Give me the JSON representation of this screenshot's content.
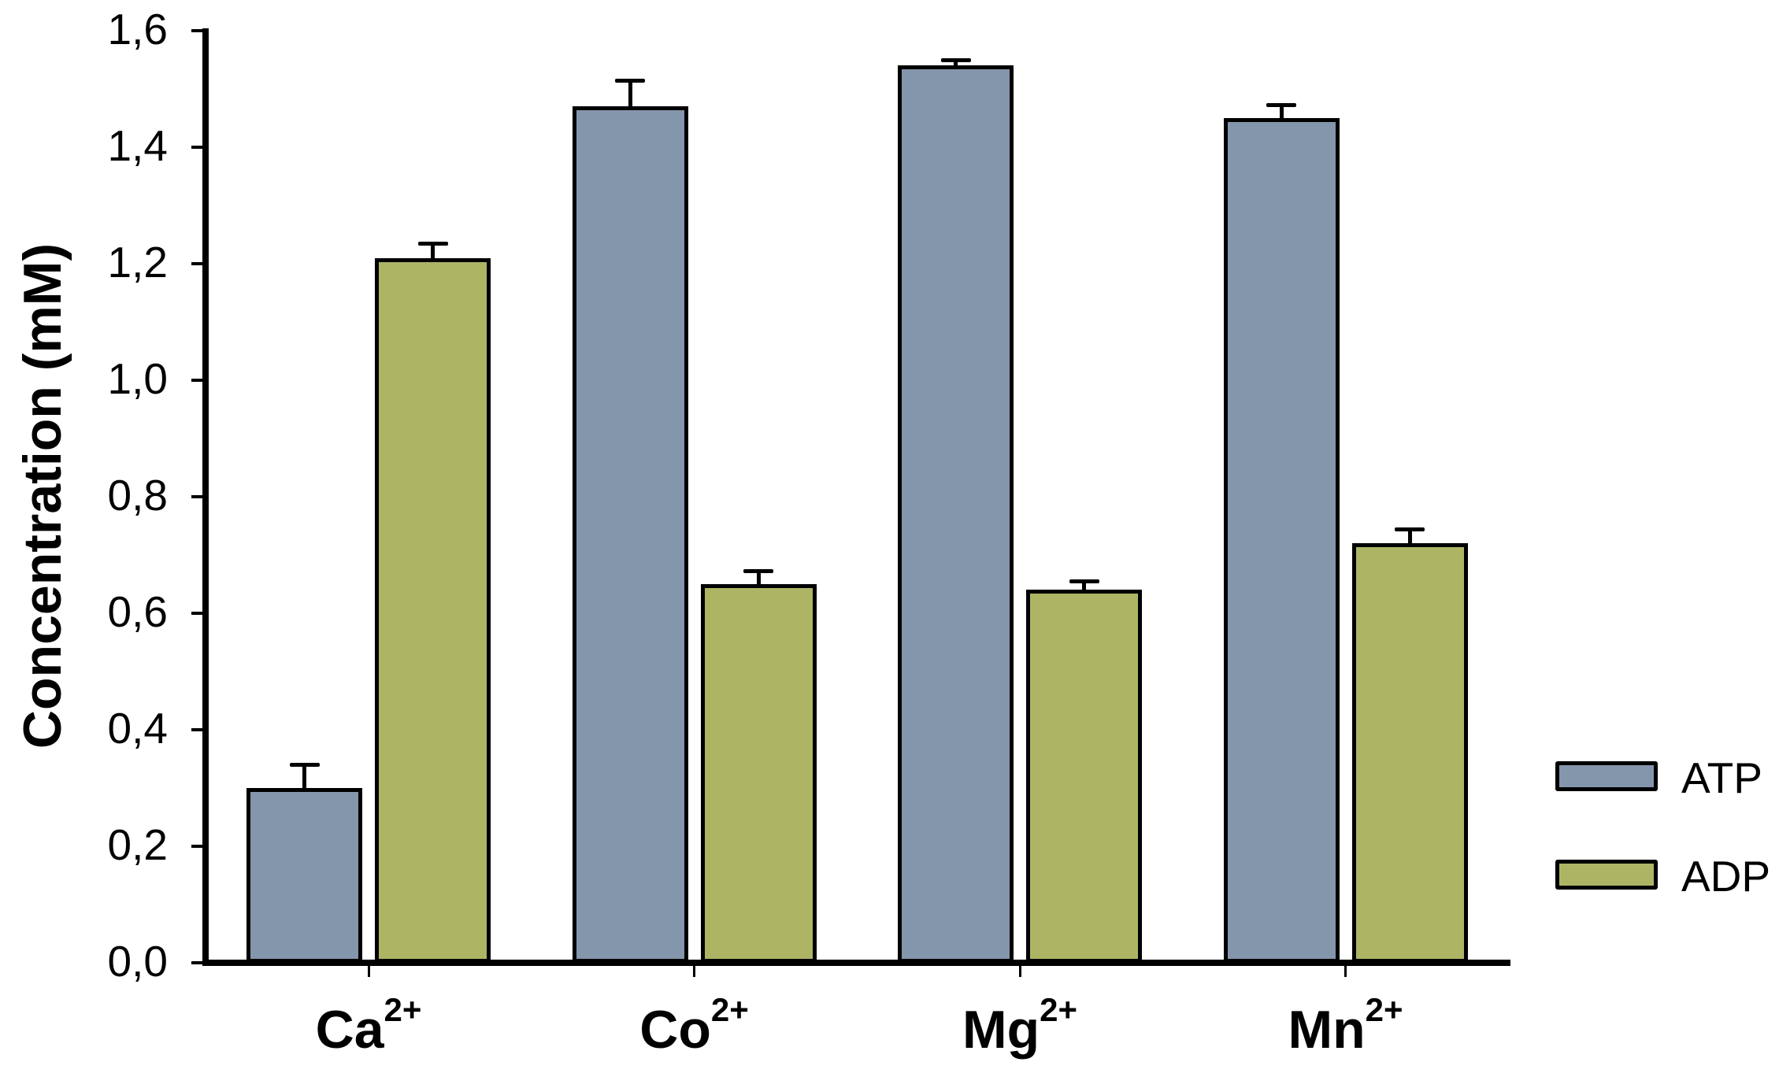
{
  "chart_data": {
    "type": "bar",
    "title": "",
    "xlabel": "",
    "ylabel": "Concentration (mM)",
    "ylim": [
      0,
      1.6
    ],
    "yticks": [
      0.0,
      0.2,
      0.4,
      0.6,
      0.8,
      1.0,
      1.2,
      1.4,
      1.6
    ],
    "ytick_labels": [
      "0,0",
      "0,2",
      "0,4",
      "0,6",
      "0,8",
      "1,0",
      "1,2",
      "1,4",
      "1,6"
    ],
    "categories": [
      "Ca2+",
      "Co2+",
      "Mg2+",
      "Mn2+"
    ],
    "category_labels": [
      {
        "base": "Ca",
        "sup": "2+"
      },
      {
        "base": "Co",
        "sup": "2+"
      },
      {
        "base": "Mg",
        "sup": "2+"
      },
      {
        "base": "Mn",
        "sup": "2+"
      }
    ],
    "series": [
      {
        "name": "ATP",
        "color": "#8496AB",
        "values": [
          0.3,
          1.47,
          1.54,
          1.45
        ],
        "errors": [
          0.04,
          0.045,
          0.01,
          0.023
        ]
      },
      {
        "name": "ADP",
        "color": "#ADB565",
        "values": [
          1.21,
          0.65,
          0.64,
          0.72
        ],
        "errors": [
          0.025,
          0.023,
          0.015,
          0.024
        ]
      }
    ],
    "grid": false,
    "legend_position": "right",
    "error_bars": "upper only"
  },
  "legend": {
    "items": [
      {
        "label": "ATP",
        "color": "#8496AB"
      },
      {
        "label": "ADP",
        "color": "#ADB565"
      }
    ]
  },
  "axis": {
    "ylabel": "Concentration (mM)"
  }
}
